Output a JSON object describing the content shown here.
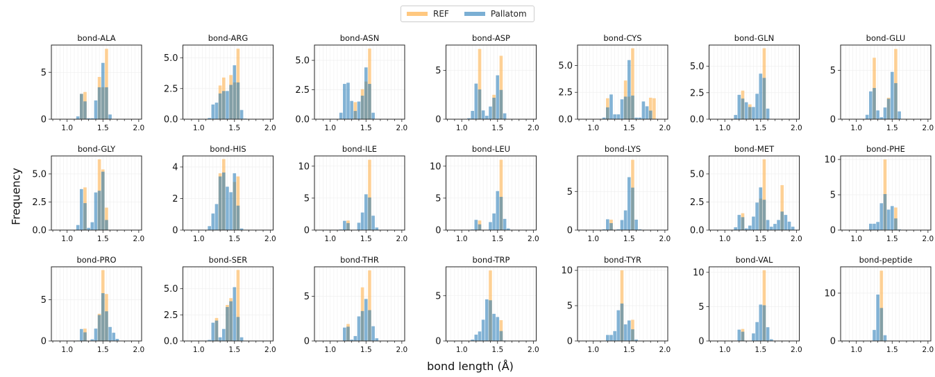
{
  "legend": {
    "placement": "top-center",
    "items": [
      {
        "label": "REF",
        "color": "#ffc880"
      },
      {
        "label": "Pallatom",
        "color": "#7bafd4"
      }
    ]
  },
  "chart_data": {
    "type": "bar",
    "subtype": "overlaid histograms (7x3 grid)",
    "xlabel": "bond length (Å)",
    "ylabel": "Frequency",
    "xlim": [
      0.78,
      2.04
    ],
    "x_ticks": [
      "1.0",
      "1.5",
      "2.0"
    ],
    "grid": true,
    "bin_centers": [
      1.1,
      1.15,
      1.2,
      1.25,
      1.3,
      1.35,
      1.4,
      1.45,
      1.5,
      1.55,
      1.6,
      1.65,
      1.7,
      1.75,
      1.8,
      1.85,
      1.9,
      1.95
    ],
    "colors": {
      "REF": "#ffa630",
      "Pallatom": "#1f77b4"
    },
    "panels": [
      {
        "title": "bond-ALA",
        "ylim": [
          0,
          7.9
        ],
        "yticks": [
          [
            0,
            "0"
          ],
          [
            5,
            "5"
          ]
        ],
        "Pallatom": [
          0,
          0.3,
          2.7,
          1.9,
          0.1,
          0.1,
          2.0,
          3.4,
          6.0,
          3.4,
          0.5,
          0,
          0,
          0,
          0,
          0,
          0,
          0
        ],
        "REF": [
          0,
          0,
          2.7,
          2.9,
          0,
          0,
          0,
          4.5,
          3.4,
          7.5,
          0,
          0,
          0,
          0,
          0,
          0,
          0,
          0
        ]
      },
      {
        "title": "bond-ARG",
        "ylim": [
          0,
          6.05
        ],
        "yticks": [
          [
            0,
            "0.0"
          ],
          [
            2.5,
            "2.5"
          ],
          [
            5,
            "5.0"
          ]
        ],
        "Pallatom": [
          0,
          0.1,
          1.2,
          1.35,
          2.1,
          2.3,
          2.3,
          2.8,
          4.4,
          3.0,
          0.75,
          0.05,
          0,
          0,
          0,
          0,
          0,
          0
        ],
        "REF": [
          0,
          0,
          0,
          0,
          2.75,
          3.4,
          0,
          3.6,
          3.0,
          5.75,
          0,
          0,
          0,
          0,
          0,
          0,
          0,
          0
        ]
      },
      {
        "title": "bond-ASN",
        "ylim": [
          0,
          6.3
        ],
        "yticks": [
          [
            0,
            "0.0"
          ],
          [
            2.5,
            "2.5"
          ],
          [
            5,
            "5.0"
          ]
        ],
        "Pallatom": [
          0,
          0.55,
          3.0,
          3.1,
          1.55,
          0.7,
          1.5,
          2.0,
          4.4,
          3.0,
          0.55,
          0,
          0,
          0,
          0,
          0,
          0,
          0
        ],
        "REF": [
          0,
          0,
          0,
          0,
          0,
          1.45,
          0,
          2.55,
          3.2,
          6.0,
          0,
          0,
          0,
          0,
          0,
          0,
          0,
          0
        ]
      },
      {
        "title": "bond-ASP",
        "ylim": [
          0,
          7.6
        ],
        "yticks": [
          [
            0,
            "0"
          ],
          [
            5,
            "5"
          ]
        ],
        "Pallatom": [
          0.1,
          0.85,
          3.65,
          3.05,
          0.9,
          0.35,
          1.3,
          2.2,
          4.5,
          3.0,
          0.6,
          0,
          0,
          0,
          0,
          0,
          0,
          0
        ],
        "REF": [
          0,
          0,
          0,
          7.2,
          0,
          0,
          0,
          2.5,
          0,
          6.5,
          0,
          0,
          0,
          0,
          0,
          0,
          0,
          0
        ]
      },
      {
        "title": "bond-CYS",
        "ylim": [
          0,
          6.9
        ],
        "yticks": [
          [
            0,
            "0.0"
          ],
          [
            2.5,
            "2.5"
          ],
          [
            5,
            "5.0"
          ]
        ],
        "Pallatom": [
          0,
          0.15,
          1.1,
          2.3,
          0.45,
          0.45,
          1.85,
          2.1,
          5.5,
          2.2,
          0.15,
          0.15,
          1.65,
          1.2,
          0.8,
          0,
          0,
          0
        ],
        "REF": [
          0,
          0,
          1.95,
          0,
          0,
          0,
          0,
          3.6,
          2.1,
          6.6,
          0,
          0,
          0,
          0,
          2.0,
          1.95,
          0,
          0
        ]
      },
      {
        "title": "bond-GLN",
        "ylim": [
          0,
          7.0
        ],
        "yticks": [
          [
            0,
            "0.0"
          ],
          [
            2.5,
            "2.5"
          ],
          [
            5,
            "5.0"
          ]
        ],
        "Pallatom": [
          0,
          0.4,
          2.3,
          1.95,
          1.6,
          1.15,
          1.15,
          2.4,
          4.3,
          3.9,
          1.0,
          0,
          0,
          0,
          0,
          0,
          0,
          0
        ],
        "REF": [
          0,
          0,
          0,
          2.7,
          0,
          1.4,
          0,
          0,
          0,
          6.7,
          0,
          0,
          0,
          0,
          0,
          0,
          0,
          0
        ]
      },
      {
        "title": "bond-GLU",
        "ylim": [
          0,
          7.6
        ],
        "yticks": [
          [
            0,
            "0"
          ],
          [
            5,
            "5"
          ]
        ],
        "Pallatom": [
          0,
          0.45,
          2.85,
          3.2,
          0.9,
          0.2,
          1.2,
          2.1,
          4.85,
          3.7,
          0.8,
          0,
          0,
          0,
          0,
          0,
          0,
          0
        ],
        "REF": [
          0,
          0,
          0,
          6.3,
          0,
          0,
          0,
          2.2,
          0,
          7.2,
          0,
          0,
          0,
          0,
          0,
          0,
          0,
          0
        ]
      },
      {
        "title": "bond-GLY",
        "ylim": [
          0,
          6.6
        ],
        "yticks": [
          [
            0,
            "0.0"
          ],
          [
            2.5,
            "2.5"
          ],
          [
            5,
            "5.0"
          ]
        ],
        "Pallatom": [
          0,
          0.45,
          3.65,
          2.4,
          0.2,
          0.7,
          3.35,
          3.5,
          5.2,
          0.9,
          0,
          0,
          0,
          0,
          0,
          0,
          0,
          0
        ],
        "REF": [
          0,
          0,
          0,
          3.8,
          0,
          0,
          0,
          6.3,
          5.4,
          2.0,
          0,
          0,
          0,
          0,
          0,
          0,
          0,
          0
        ]
      },
      {
        "title": "bond-HIS",
        "ylim": [
          0,
          4.7
        ],
        "yticks": [
          [
            0,
            "0"
          ],
          [
            2,
            "2"
          ],
          [
            4,
            "4"
          ]
        ],
        "Pallatom": [
          0,
          0.25,
          1.05,
          1.65,
          3.4,
          3.65,
          2.75,
          2.4,
          3.6,
          1.55,
          0.1,
          0,
          0,
          0,
          0,
          0,
          0,
          0
        ],
        "REF": [
          0,
          0,
          0,
          0,
          3.6,
          4.5,
          0,
          0,
          3.05,
          3.4,
          0,
          0,
          0,
          0,
          0,
          0,
          0,
          0
        ]
      },
      {
        "title": "bond-ILE",
        "ylim": [
          0,
          11.6
        ],
        "yticks": [
          [
            0,
            "0"
          ],
          [
            5,
            "5"
          ],
          [
            10,
            "10"
          ]
        ],
        "Pallatom": [
          0,
          0.1,
          1.45,
          1.1,
          0,
          0,
          1.15,
          2.75,
          5.6,
          5.1,
          2.25,
          0.4,
          0,
          0,
          0,
          0,
          0,
          0
        ],
        "REF": [
          0,
          0,
          0,
          1.5,
          0,
          0,
          0,
          0,
          0,
          11.0,
          0,
          0,
          0,
          0,
          0,
          0,
          0,
          0
        ]
      },
      {
        "title": "bond-LEU",
        "ylim": [
          0,
          11.6
        ],
        "yticks": [
          [
            0,
            "0"
          ],
          [
            5,
            "5"
          ],
          [
            10,
            "10"
          ]
        ],
        "Pallatom": [
          0,
          0.1,
          1.6,
          0.9,
          0,
          0,
          1.25,
          2.6,
          6.1,
          5.2,
          1.75,
          0.25,
          0,
          0,
          0,
          0,
          0,
          0
        ],
        "REF": [
          0,
          0,
          0,
          1.5,
          0,
          0,
          0,
          0,
          0,
          11.0,
          0,
          0,
          0,
          0,
          0,
          0,
          0,
          0
        ]
      },
      {
        "title": "bond-LYS",
        "ylim": [
          0,
          9.6
        ],
        "yticks": [
          [
            0,
            "0"
          ],
          [
            5,
            "5"
          ]
        ],
        "Pallatom": [
          0,
          0.1,
          1.4,
          0.9,
          0,
          0.1,
          1.3,
          2.55,
          6.85,
          5.5,
          1.35,
          0.1,
          0,
          0,
          0,
          0,
          0,
          0
        ],
        "REF": [
          0,
          0,
          0,
          1.35,
          0,
          0,
          0,
          0,
          0,
          9.1,
          0,
          0,
          0,
          0,
          0,
          0,
          0,
          0
        ]
      },
      {
        "title": "bond-MET",
        "ylim": [
          0,
          6.6
        ],
        "yticks": [
          [
            0,
            "0.0"
          ],
          [
            2.5,
            "2.5"
          ],
          [
            5,
            "5.0"
          ]
        ],
        "Pallatom": [
          0,
          0.25,
          1.35,
          1.15,
          0.15,
          0.4,
          1.2,
          2.45,
          3.8,
          2.7,
          0.9,
          0.3,
          0.55,
          0.9,
          1.65,
          1.35,
          0.75,
          0.3
        ],
        "REF": [
          0,
          0,
          0,
          1.5,
          0,
          0,
          0,
          0,
          2.8,
          6.3,
          0,
          0,
          0,
          0,
          4.0,
          0,
          0,
          0
        ]
      },
      {
        "title": "bond-PHE",
        "ylim": [
          0,
          10.5
        ],
        "yticks": [
          [
            0,
            "0"
          ],
          [
            5,
            "5"
          ],
          [
            10,
            "10"
          ]
        ],
        "Pallatom": [
          0,
          0.05,
          0.9,
          0.9,
          1.15,
          3.8,
          5.1,
          2.9,
          3.4,
          1.65,
          0.1,
          0,
          0,
          0,
          0,
          0,
          0,
          0
        ],
        "REF": [
          0,
          0,
          0,
          0,
          0,
          0,
          10.0,
          0,
          0,
          3.2,
          0,
          0,
          0,
          0,
          0,
          0,
          0,
          0
        ]
      },
      {
        "title": "bond-PRO",
        "ylim": [
          0,
          9.0
        ],
        "yticks": [
          [
            0,
            "0"
          ],
          [
            5,
            "5"
          ]
        ],
        "Pallatom": [
          0,
          0.05,
          1.45,
          1.05,
          0,
          0.2,
          1.5,
          3.15,
          5.8,
          3.6,
          1.7,
          1.0,
          0.25,
          0,
          0,
          0,
          0,
          0
        ],
        "REF": [
          0,
          0,
          0,
          1.5,
          0,
          0,
          0,
          3.3,
          8.6,
          5.7,
          0,
          0,
          0,
          0,
          0,
          0,
          0,
          0
        ]
      },
      {
        "title": "bond-SER",
        "ylim": [
          0,
          7.1
        ],
        "yticks": [
          [
            0,
            "0.0"
          ],
          [
            2.5,
            "2.5"
          ],
          [
            5,
            "5.0"
          ]
        ],
        "Pallatom": [
          0,
          0.1,
          1.75,
          1.95,
          0.35,
          1.15,
          3.25,
          3.8,
          5.15,
          2.3,
          0.35,
          0,
          0,
          0,
          0,
          0,
          0,
          0
        ],
        "REF": [
          0,
          0,
          0,
          2.2,
          0,
          0,
          3.45,
          4.1,
          0,
          6.8,
          0,
          0,
          0,
          0,
          0,
          0,
          0,
          0
        ]
      },
      {
        "title": "bond-THR",
        "ylim": [
          0,
          8.3
        ],
        "yticks": [
          [
            0,
            "0"
          ],
          [
            5,
            "5"
          ]
        ],
        "Pallatom": [
          0,
          0,
          1.5,
          1.6,
          0.15,
          0.55,
          2.75,
          3.35,
          4.7,
          3.45,
          1.65,
          0.3,
          0,
          0,
          0,
          0,
          0,
          0
        ],
        "REF": [
          0,
          0,
          0,
          1.9,
          0,
          0,
          0,
          6.0,
          0,
          7.9,
          0,
          0,
          0,
          0,
          0,
          0,
          0,
          0
        ]
      },
      {
        "title": "bond-TRP",
        "ylim": [
          0,
          8.2
        ],
        "yticks": [
          [
            0,
            "0"
          ],
          [
            5,
            "5"
          ]
        ],
        "Pallatom": [
          0,
          0.15,
          0.7,
          1.05,
          2.35,
          4.6,
          4.5,
          3.0,
          2.65,
          1.1,
          0.05,
          0,
          0,
          0,
          0,
          0,
          0,
          0
        ],
        "REF": [
          0,
          0,
          0,
          0,
          0,
          0,
          7.8,
          0,
          0,
          2.3,
          0,
          0,
          0,
          0,
          0,
          0,
          0,
          0
        ]
      },
      {
        "title": "bond-TYR",
        "ylim": [
          0,
          10.5
        ],
        "yticks": [
          [
            0,
            "0"
          ],
          [
            5,
            "5"
          ],
          [
            10,
            "10"
          ]
        ],
        "Pallatom": [
          0,
          0.05,
          0.85,
          0.85,
          1.4,
          4.35,
          5.3,
          2.35,
          2.9,
          1.65,
          0.2,
          0,
          0,
          0,
          0,
          0,
          0,
          0
        ],
        "REF": [
          0,
          0,
          0,
          0,
          0,
          0,
          10.0,
          0,
          0,
          3.0,
          0,
          0,
          0,
          0,
          0,
          0,
          0,
          0
        ]
      },
      {
        "title": "bond-VAL",
        "ylim": [
          0,
          10.8
        ],
        "yticks": [
          [
            0,
            "0"
          ],
          [
            5,
            "5"
          ],
          [
            10,
            "10"
          ]
        ],
        "Pallatom": [
          0,
          0,
          1.65,
          1.35,
          0,
          0,
          1.1,
          2.75,
          5.3,
          5.2,
          2.0,
          0.25,
          0,
          0,
          0,
          0,
          0,
          0
        ],
        "REF": [
          0,
          0,
          0,
          1.75,
          0,
          0,
          0,
          0,
          0,
          10.3,
          0,
          0,
          0,
          0,
          0,
          0,
          0,
          0
        ]
      },
      {
        "title": "bond-peptide",
        "ylim": [
          0,
          15.5
        ],
        "yticks": [
          [
            0,
            "0"
          ],
          [
            10,
            "10"
          ]
        ],
        "Pallatom": [
          0,
          0,
          0,
          2.3,
          9.7,
          6.9,
          1.2,
          0,
          0,
          0,
          0,
          0,
          0,
          0,
          0,
          0,
          0,
          0
        ],
        "REF": [
          0,
          0,
          0,
          0,
          0,
          14.7,
          0,
          0,
          0,
          0,
          0,
          0,
          0,
          0,
          0,
          0,
          0,
          0
        ]
      }
    ]
  }
}
